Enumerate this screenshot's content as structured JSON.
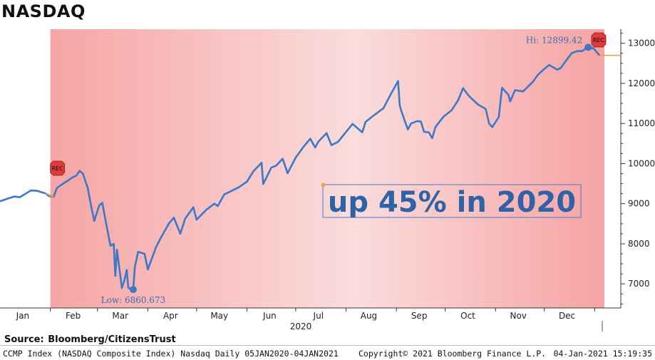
{
  "title": "NASDAQ",
  "source": "Source:  Bloomberg/CitizensTrust",
  "footer": {
    "left": "CCMP Index (NASDAQ Composite Index) Nasdaq  Daily 05JAN2020-04JAN2021",
    "middle": "Copyright© 2021 Bloomberg Finance L.P.",
    "right": "04-Jan-2021 15:19:35"
  },
  "annotation": "up 45% in 2020",
  "recession_label": "REC",
  "hi_label": "Hi: 12899.42",
  "low_label": "Low: 6860.673",
  "colors": {
    "line": "#3d78c7",
    "recession_shade": "#f6a5a5",
    "marker": "#3d78c7",
    "last_price_line": "#e6a23c",
    "rec_flag": "#e03a3a",
    "annotation_text": "#2f63a8"
  },
  "chart_data": {
    "type": "line",
    "title": "NASDAQ",
    "ylim": [
      6400,
      13350
    ],
    "y_ticks": [
      "7000",
      "8000",
      "9000",
      "10000",
      "11000",
      "12000",
      "13000"
    ],
    "y_tick_values": [
      7000,
      8000,
      9000,
      10000,
      11000,
      12000,
      13000
    ],
    "x_ticks": [
      "Jan",
      "Feb",
      "Mar",
      "Apr",
      "May",
      "Jun",
      "Jul",
      "Aug",
      "Sep",
      "Oct",
      "Nov",
      "Dec"
    ],
    "x_tick_dates": [
      "2020-01-15",
      "2020-02-15",
      "2020-03-15",
      "2020-04-15",
      "2020-05-15",
      "2020-06-15",
      "2020-07-15",
      "2020-08-15",
      "2020-09-15",
      "2020-10-15",
      "2020-11-15",
      "2020-12-15"
    ],
    "xlim": [
      "2020-01-01",
      "2021-01-07"
    ],
    "year_label": "2020",
    "recession_period": [
      "2020-02-01",
      "2021-01-04"
    ],
    "high": {
      "date": "2020-12-28",
      "value": 12899.42
    },
    "low": {
      "date": "2020-03-23",
      "value": 6860.673
    },
    "last_value": 12698,
    "grid": false,
    "legend": "none",
    "series": [
      {
        "points": [
          [
            "2020-01-01",
            9060
          ],
          [
            "2020-01-06",
            9130
          ],
          [
            "2020-01-10",
            9180
          ],
          [
            "2020-01-13",
            9160
          ],
          [
            "2020-01-16",
            9230
          ],
          [
            "2020-01-20",
            9330
          ],
          [
            "2020-01-24",
            9320
          ],
          [
            "2020-01-27",
            9280
          ],
          [
            "2020-01-29",
            9260
          ],
          [
            "2020-01-31",
            9190
          ],
          [
            "2020-02-03",
            9170
          ],
          [
            "2020-02-05",
            9390
          ],
          [
            "2020-02-07",
            9450
          ],
          [
            "2020-02-10",
            9530
          ],
          [
            "2020-02-12",
            9580
          ],
          [
            "2020-02-14",
            9640
          ],
          [
            "2020-02-17",
            9700
          ],
          [
            "2020-02-19",
            9820
          ],
          [
            "2020-02-21",
            9750
          ],
          [
            "2020-02-24",
            9390
          ],
          [
            "2020-02-26",
            8960
          ],
          [
            "2020-02-28",
            8570
          ],
          [
            "2020-03-02",
            8950
          ],
          [
            "2020-03-04",
            9020
          ],
          [
            "2020-03-06",
            8570
          ],
          [
            "2020-03-09",
            7950
          ],
          [
            "2020-03-11",
            8000
          ],
          [
            "2020-03-12",
            7200
          ],
          [
            "2020-03-13",
            7850
          ],
          [
            "2020-03-16",
            6900
          ],
          [
            "2020-03-18",
            7150
          ],
          [
            "2020-03-19",
            7350
          ],
          [
            "2020-03-20",
            6900
          ],
          [
            "2020-03-23",
            6860.673
          ],
          [
            "2020-03-24",
            7420
          ],
          [
            "2020-03-26",
            7800
          ],
          [
            "2020-03-30",
            7750
          ],
          [
            "2020-04-01",
            7360
          ],
          [
            "2020-04-06",
            7910
          ],
          [
            "2020-04-09",
            8150
          ],
          [
            "2020-04-14",
            8510
          ],
          [
            "2020-04-17",
            8650
          ],
          [
            "2020-04-21",
            8250
          ],
          [
            "2020-04-24",
            8630
          ],
          [
            "2020-04-29",
            8910
          ],
          [
            "2020-05-01",
            8600
          ],
          [
            "2020-05-07",
            8850
          ],
          [
            "2020-05-12",
            9000
          ],
          [
            "2020-05-14",
            8940
          ],
          [
            "2020-05-18",
            9230
          ],
          [
            "2020-05-21",
            9290
          ],
          [
            "2020-05-27",
            9410
          ],
          [
            "2020-06-01",
            9550
          ],
          [
            "2020-06-05",
            9810
          ],
          [
            "2020-06-10",
            10020
          ],
          [
            "2020-06-11",
            9490
          ],
          [
            "2020-06-16",
            9900
          ],
          [
            "2020-06-19",
            9950
          ],
          [
            "2020-06-23",
            10120
          ],
          [
            "2020-06-26",
            9760
          ],
          [
            "2020-07-01",
            10150
          ],
          [
            "2020-07-06",
            10430
          ],
          [
            "2020-07-10",
            10620
          ],
          [
            "2020-07-13",
            10400
          ],
          [
            "2020-07-15",
            10550
          ],
          [
            "2020-07-20",
            10760
          ],
          [
            "2020-07-23",
            10460
          ],
          [
            "2020-07-27",
            10540
          ],
          [
            "2020-07-31",
            10740
          ],
          [
            "2020-08-05",
            10990
          ],
          [
            "2020-08-11",
            10780
          ],
          [
            "2020-08-13",
            11040
          ],
          [
            "2020-08-18",
            11200
          ],
          [
            "2020-08-24",
            11380
          ],
          [
            "2020-08-28",
            11690
          ],
          [
            "2020-09-02",
            12060
          ],
          [
            "2020-09-03",
            11460
          ],
          [
            "2020-09-04",
            11310
          ],
          [
            "2020-09-08",
            10850
          ],
          [
            "2020-09-10",
            11000
          ],
          [
            "2020-09-14",
            11060
          ],
          [
            "2020-09-16",
            11050
          ],
          [
            "2020-09-18",
            10790
          ],
          [
            "2020-09-21",
            10780
          ],
          [
            "2020-09-23",
            10630
          ],
          [
            "2020-09-25",
            10910
          ],
          [
            "2020-09-30",
            11170
          ],
          [
            "2020-10-05",
            11330
          ],
          [
            "2020-10-09",
            11580
          ],
          [
            "2020-10-12",
            11880
          ],
          [
            "2020-10-14",
            11770
          ],
          [
            "2020-10-16",
            11670
          ],
          [
            "2020-10-21",
            11480
          ],
          [
            "2020-10-26",
            11360
          ],
          [
            "2020-10-28",
            11000
          ],
          [
            "2020-10-30",
            10910
          ],
          [
            "2020-11-03",
            11160
          ],
          [
            "2020-11-05",
            11890
          ],
          [
            "2020-11-09",
            11710
          ],
          [
            "2020-11-10",
            11550
          ],
          [
            "2020-11-13",
            11830
          ],
          [
            "2020-11-18",
            11800
          ],
          [
            "2020-11-24",
            12040
          ],
          [
            "2020-11-27",
            12210
          ],
          [
            "2020-12-01",
            12360
          ],
          [
            "2020-12-04",
            12460
          ],
          [
            "2020-12-09",
            12340
          ],
          [
            "2020-12-11",
            12380
          ],
          [
            "2020-12-15",
            12600
          ],
          [
            "2020-12-18",
            12760
          ],
          [
            "2020-12-22",
            12810
          ],
          [
            "2020-12-24",
            12800
          ],
          [
            "2020-12-28",
            12899.42
          ],
          [
            "2020-12-30",
            12870
          ],
          [
            "2020-12-31",
            12888
          ],
          [
            "2021-01-04",
            12698
          ]
        ]
      }
    ]
  }
}
